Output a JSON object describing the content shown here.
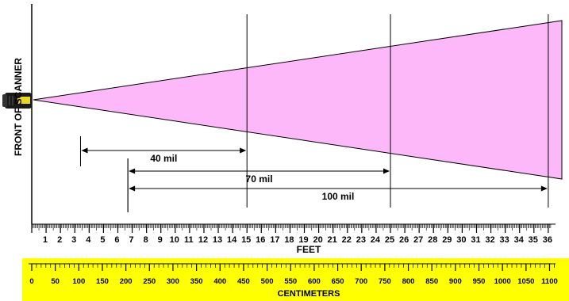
{
  "side_label": "FRONT OF SCANNER",
  "colors": {
    "beam_fill": "#fdb8f9",
    "cm_band": "#ffff00",
    "side_label": "#999999",
    "scanner_body": "#1a1a1a",
    "scanner_window": "#e9d81a"
  },
  "feet_axis": {
    "label": "FEET",
    "max_feet": 36,
    "tick_labels": [
      "1",
      "2",
      "3",
      "4",
      "5",
      "6",
      "7",
      "8",
      "9",
      "10",
      "11",
      "12",
      "13",
      "14",
      "15",
      "16",
      "17",
      "18",
      "19",
      "20",
      "21",
      "22",
      "23",
      "24",
      "25",
      "26",
      "27",
      "28",
      "29",
      "30",
      "31",
      "32",
      "33",
      "34",
      "35",
      "36"
    ]
  },
  "cm_axis": {
    "label": "CENTIMETERS",
    "tick_labels": [
      "0",
      "50",
      "100",
      "150",
      "200",
      "250",
      "300",
      "350",
      "400",
      "450",
      "500",
      "550",
      "600",
      "650",
      "700",
      "750",
      "800",
      "850",
      "900",
      "950",
      "1000",
      "1050",
      "1100"
    ]
  },
  "ranges": [
    {
      "label": "40 mil",
      "start_ft": 3.4,
      "end_ft": 15
    },
    {
      "label": "70 mil",
      "start_ft": 6.7,
      "end_ft": 25
    },
    {
      "label": "100 mil",
      "start_ft": 6.7,
      "end_ft": 36
    }
  ],
  "guide_lines_ft": [
    15,
    25,
    36
  ]
}
